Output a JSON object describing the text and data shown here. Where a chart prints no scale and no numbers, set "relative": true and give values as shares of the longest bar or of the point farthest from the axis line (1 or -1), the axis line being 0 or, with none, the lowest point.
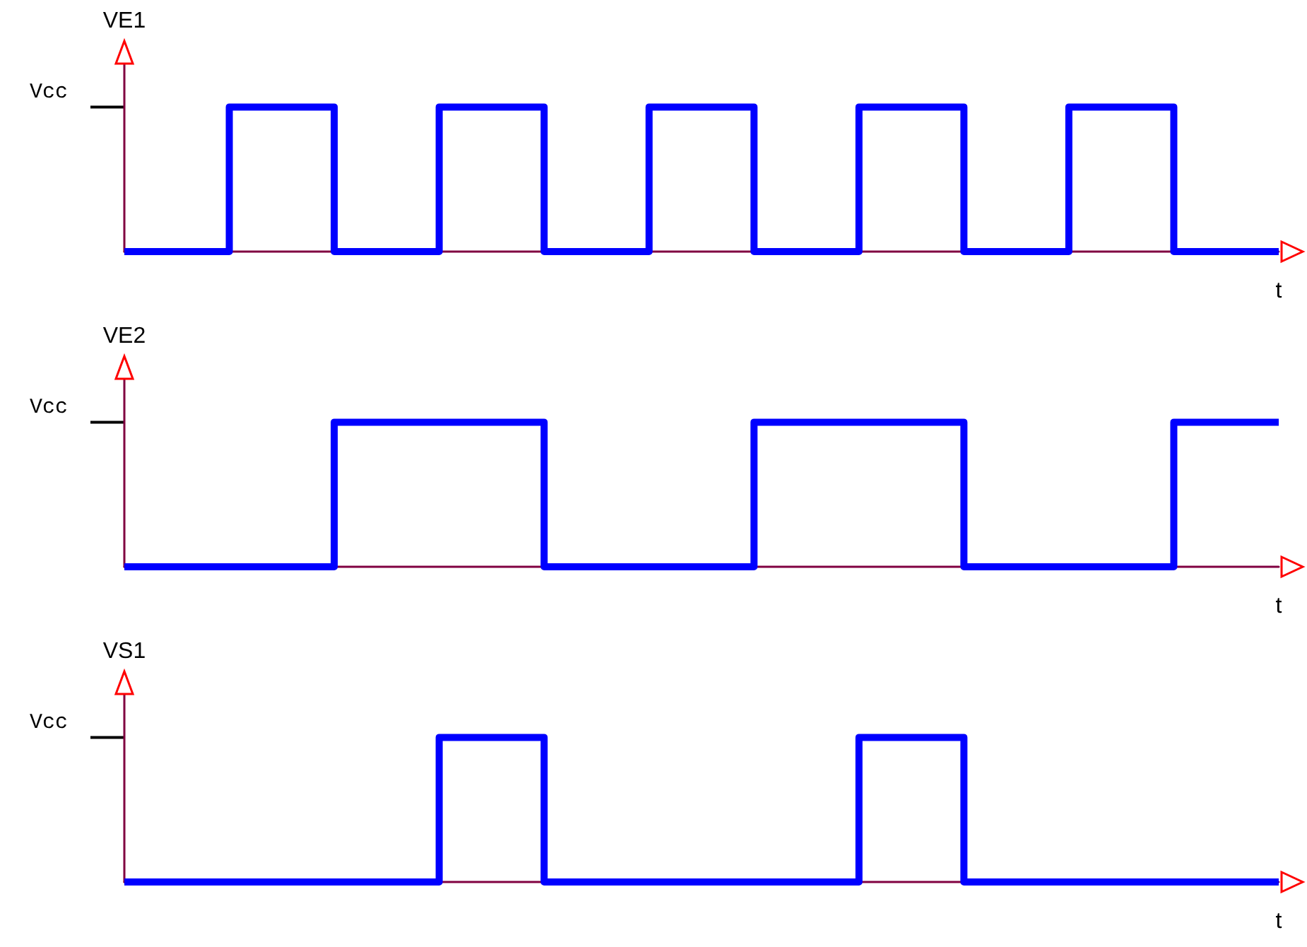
{
  "chart_data": [
    {
      "type": "step",
      "ylabel": "VE1",
      "xlabel": "t",
      "relative": true,
      "categories": [
        null,
        null,
        null,
        null,
        null,
        null,
        null,
        null,
        null,
        null,
        null,
        null
      ],
      "series": [
        {
          "color": "#0000ff",
          "values": [
            0,
            1,
            0,
            1,
            0,
            1,
            0,
            1,
            0,
            1,
            0,
            0
          ]
        }
      ],
      "annotations": [
        "Vcc"
      ],
      "marker": "none"
    },
    {
      "type": "step",
      "ylabel": "VE2",
      "xlabel": "t",
      "relative": true,
      "categories": [
        null,
        null,
        null,
        null,
        null,
        null,
        null,
        null,
        null,
        null,
        null,
        null
      ],
      "series": [
        {
          "color": "#0000ff",
          "values": [
            0,
            0,
            1,
            1,
            0,
            0,
            1,
            1,
            0,
            0,
            1,
            1
          ]
        }
      ],
      "annotations": [
        "Vcc"
      ],
      "marker": "none"
    },
    {
      "type": "step",
      "ylabel": "VS1",
      "xlabel": "t",
      "relative": true,
      "categories": [
        null,
        null,
        null,
        null,
        null,
        null,
        null,
        null,
        null,
        null,
        null,
        null
      ],
      "series": [
        {
          "color": "#0000ff",
          "values": [
            0,
            0,
            0,
            1,
            0,
            0,
            0,
            1,
            0,
            0,
            0,
            0
          ]
        }
      ],
      "annotations": [
        "Vcc"
      ],
      "marker": "none"
    }
  ]
}
